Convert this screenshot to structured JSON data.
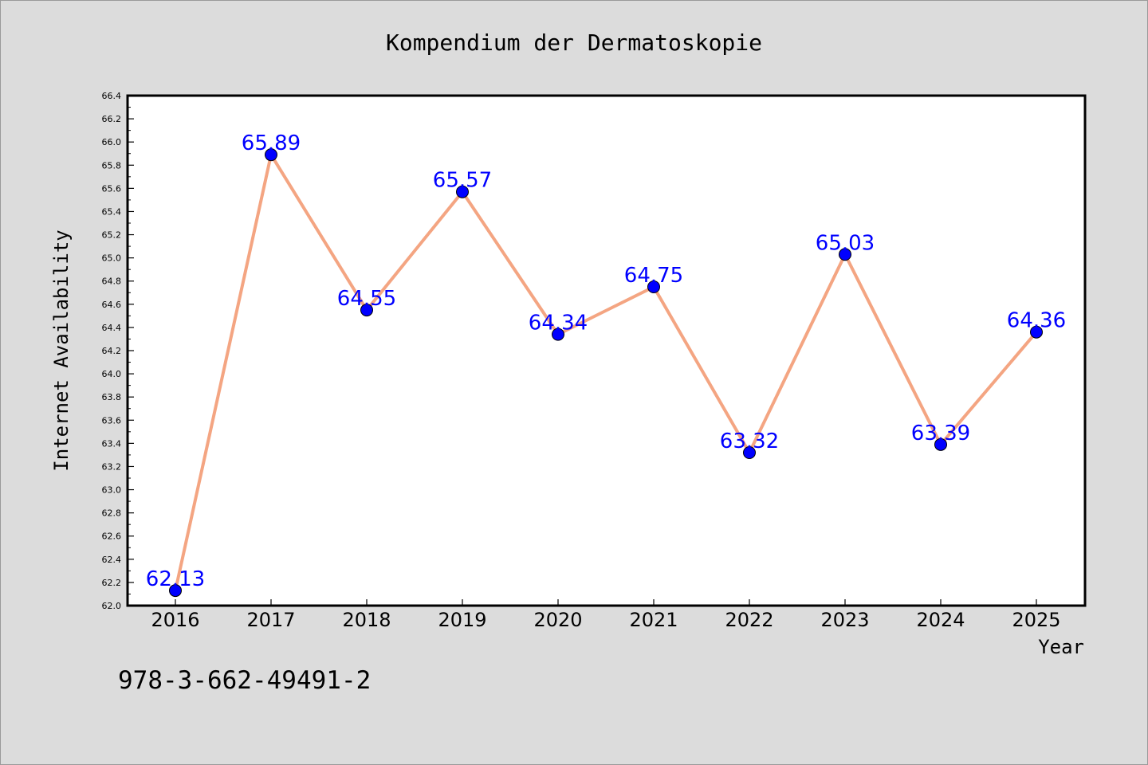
{
  "chart_data": {
    "type": "line",
    "title": "Kompendium der Dermatoskopie",
    "xlabel": "Year",
    "ylabel": "Internet Availability",
    "categories": [
      "2016",
      "2017",
      "2018",
      "2019",
      "2020",
      "2021",
      "2022",
      "2023",
      "2024",
      "2025"
    ],
    "values": [
      62.13,
      65.89,
      64.55,
      65.57,
      64.34,
      64.75,
      63.32,
      65.03,
      63.39,
      64.36
    ],
    "data_labels": [
      "62.13",
      "65.89",
      "64.55",
      "65.57",
      "64.34",
      "64.75",
      "63.32",
      "65.03",
      "63.39",
      "64.36"
    ],
    "ylim": [
      62.0,
      66.4
    ],
    "yticks": [
      "62.0",
      "62.2",
      "62.4",
      "62.6",
      "62.8",
      "63.0",
      "63.2",
      "63.4",
      "63.6",
      "63.8",
      "64.0",
      "64.2",
      "64.4",
      "64.6",
      "64.8",
      "65.0",
      "65.2",
      "65.4",
      "65.6",
      "65.8",
      "66.0",
      "66.2",
      "66.4"
    ],
    "grid": false,
    "line_color": "#f4a582",
    "marker_color": "#0000ff",
    "label_color": "#0000ff"
  },
  "footer": {
    "isbn": "978-3-662-49491-2"
  }
}
